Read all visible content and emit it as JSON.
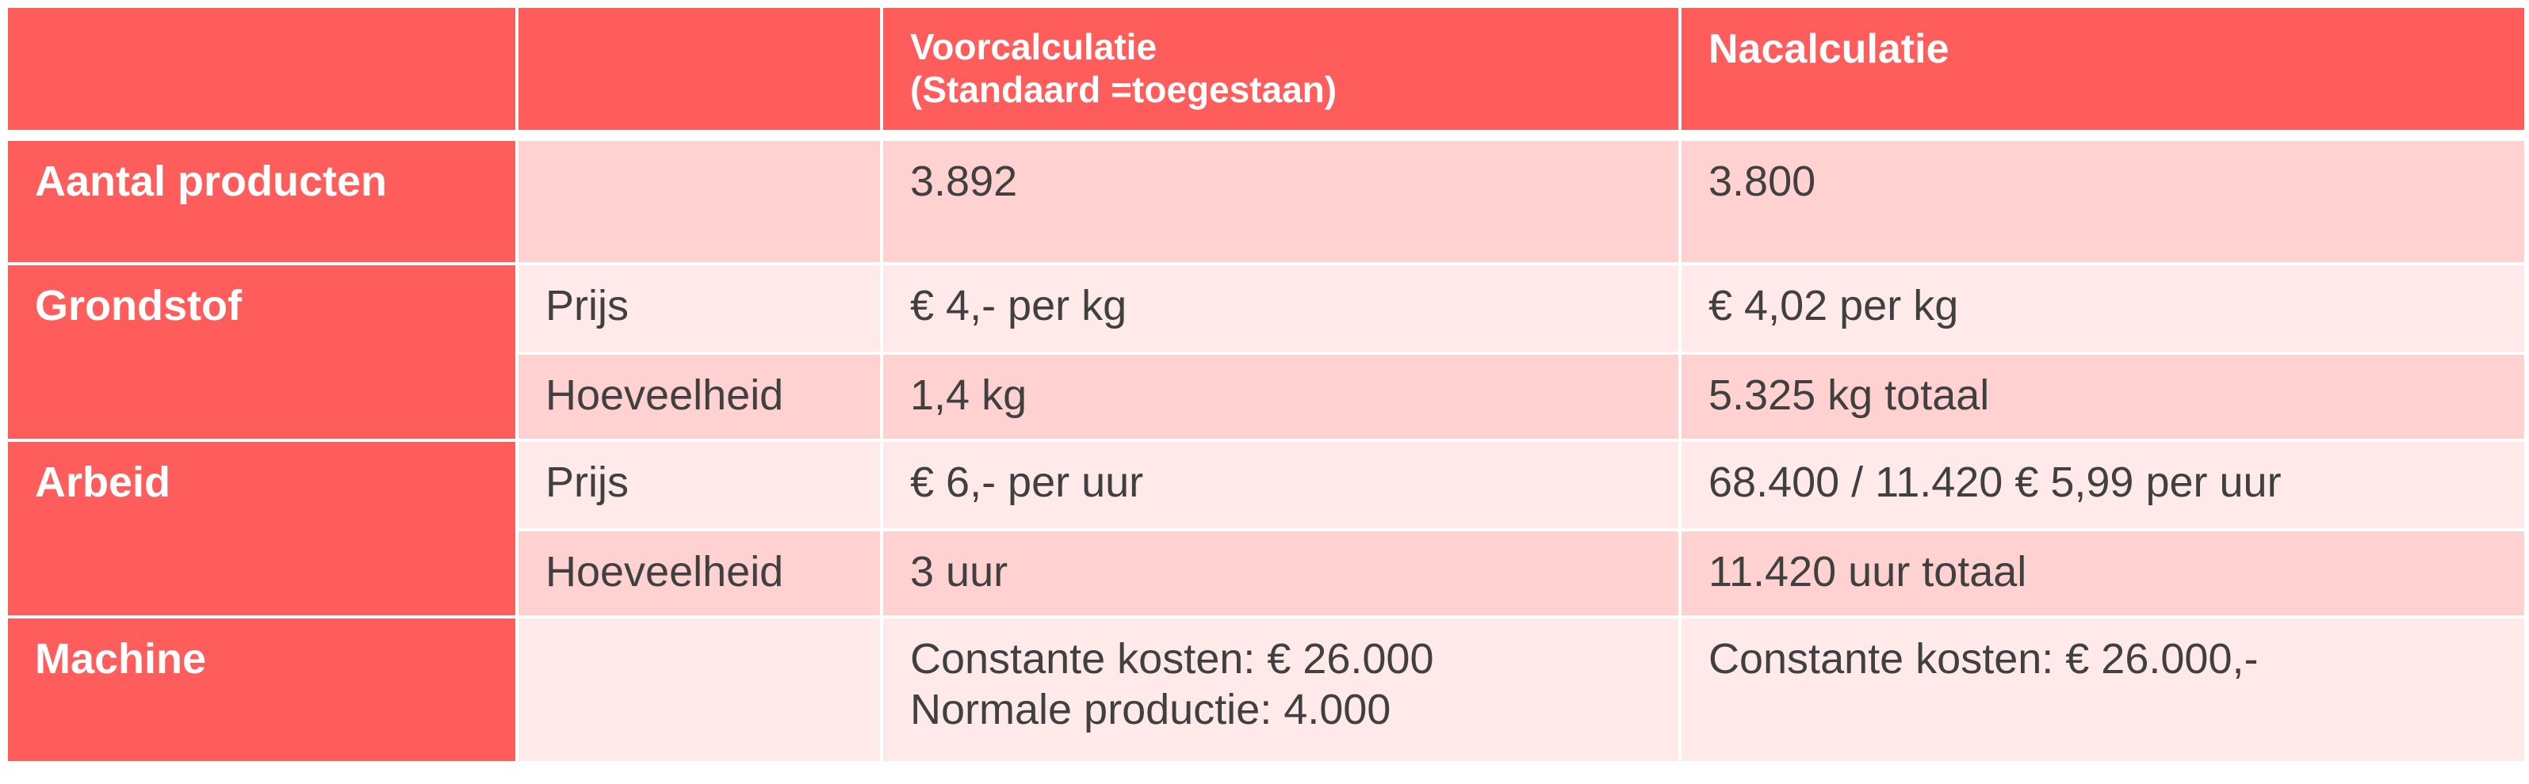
{
  "colors": {
    "header": "#ff5c5c",
    "row_dark": "#ffd1d1",
    "row_light": "#ffe9e9",
    "text": "#404040"
  },
  "header": {
    "col1": "",
    "col2": "",
    "col3_line1": "Voorcalculatie",
    "col3_line2": "(Standaard =toegestaan)",
    "col4": "Nacalculatie"
  },
  "rows": {
    "aantal": {
      "label": "Aantal producten",
      "sub": "",
      "voor": "3.892",
      "na": "3.800"
    },
    "grondstof": {
      "label": "Grondstof",
      "prijs": {
        "sub": "Prijs",
        "voor": "€ 4,- per kg",
        "na": "€ 4,02 per kg"
      },
      "hoeveelheid": {
        "sub": "Hoeveelheid",
        "voor": "1,4 kg",
        "na": "5.325 kg totaal"
      }
    },
    "arbeid": {
      "label": "Arbeid",
      "prijs": {
        "sub": "Prijs",
        "voor": "€ 6,- per uur",
        "na": "68.400 / 11.420 € 5,99 per uur"
      },
      "hoeveelheid": {
        "sub": "Hoeveelheid",
        "voor": "3 uur",
        "na": "11.420 uur totaal"
      }
    },
    "machine": {
      "label": "Machine",
      "sub": "",
      "voor_line1": "Constante kosten: € 26.000",
      "voor_line2": "Normale productie: 4.000",
      "na": "Constante kosten: € 26.000,-"
    }
  }
}
